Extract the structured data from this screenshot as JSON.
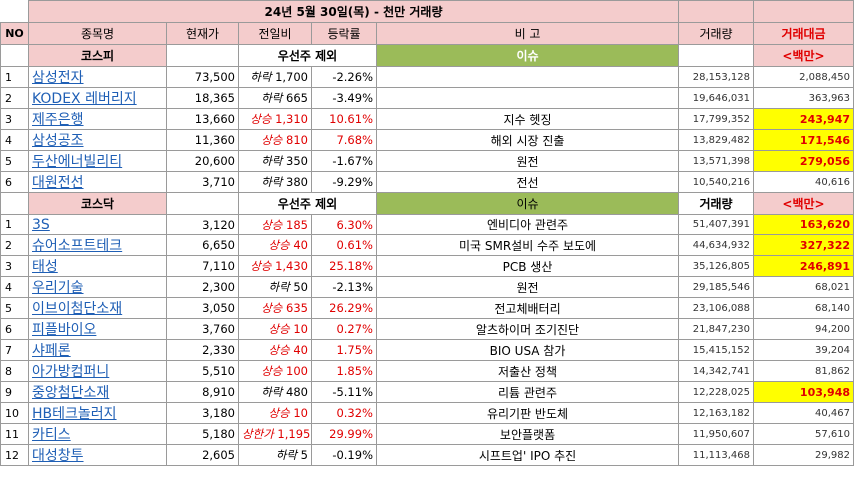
{
  "title": "24년 5월 30일(목) - 천만 거래량",
  "headers": {
    "no": "NO",
    "name": "종목명",
    "price": "현재가",
    "change": "전일비",
    "rate": "등락률",
    "note": "비 고",
    "volume": "거래량",
    "amount": "거래대금"
  },
  "kospi": {
    "label": "코스피",
    "sub": "우선주 제외",
    "issue": "이슈",
    "unit": "<백만>",
    "rows": [
      {
        "no": "1",
        "name": "삼성전자",
        "price": "73,500",
        "dir": "하락",
        "chg": "1,700",
        "rate": "-2.26%",
        "note": "",
        "volume": "28,153,128",
        "amount": "2,088,450",
        "hl": false,
        "up": false
      },
      {
        "no": "2",
        "name": "KODEX 레버리지",
        "price": "18,365",
        "dir": "하락",
        "chg": "665",
        "rate": "-3.49%",
        "note": "",
        "volume": "19,646,031",
        "amount": "363,963",
        "hl": false,
        "up": false
      },
      {
        "no": "3",
        "name": "제주은행",
        "price": "13,660",
        "dir": "상승",
        "chg": "1,310",
        "rate": "10.61%",
        "note": "지수 헷징",
        "volume": "17,799,352",
        "amount": "243,947",
        "hl": true,
        "up": true
      },
      {
        "no": "4",
        "name": "삼성공조",
        "price": "11,360",
        "dir": "상승",
        "chg": "810",
        "rate": "7.68%",
        "note": "해외 시장 진출",
        "volume": "13,829,482",
        "amount": "171,546",
        "hl": true,
        "up": true
      },
      {
        "no": "5",
        "name": "두산에너빌리티",
        "price": "20,600",
        "dir": "하락",
        "chg": "350",
        "rate": "-1.67%",
        "note": "원전",
        "volume": "13,571,398",
        "amount": "279,056",
        "hl": true,
        "up": false
      },
      {
        "no": "6",
        "name": "대원전선",
        "price": "3,710",
        "dir": "하락",
        "chg": "380",
        "rate": "-9.29%",
        "note": "전선",
        "volume": "10,540,216",
        "amount": "40,616",
        "hl": false,
        "up": false
      }
    ]
  },
  "kosdaq": {
    "label": "코스닥",
    "sub": "우선주 제외",
    "issue": "이슈",
    "volume_label": "거래량",
    "unit": "<백만>",
    "rows": [
      {
        "no": "1",
        "name": "3S",
        "price": "3,120",
        "dir": "상승",
        "chg": "185",
        "rate": "6.30%",
        "note": "엔비디아 관련주",
        "volume": "51,407,391",
        "amount": "163,620",
        "hl": true,
        "up": true
      },
      {
        "no": "2",
        "name": "슈어소프트테크",
        "price": "6,650",
        "dir": "상승",
        "chg": "40",
        "rate": "0.61%",
        "note": "미국 SMR설비 수주 보도에",
        "volume": "44,634,932",
        "amount": "327,322",
        "hl": true,
        "up": true
      },
      {
        "no": "3",
        "name": "태성",
        "price": "7,110",
        "dir": "상승",
        "chg": "1,430",
        "rate": "25.18%",
        "note": "PCB 생산",
        "volume": "35,126,805",
        "amount": "246,891",
        "hl": true,
        "up": true
      },
      {
        "no": "4",
        "name": "우리기술",
        "price": "2,300",
        "dir": "하락",
        "chg": "50",
        "rate": "-2.13%",
        "note": "원전",
        "volume": "29,185,546",
        "amount": "68,021",
        "hl": false,
        "up": false
      },
      {
        "no": "5",
        "name": "이브이첨단소재",
        "price": "3,050",
        "dir": "상승",
        "chg": "635",
        "rate": "26.29%",
        "note": "전고체배터리",
        "volume": "23,106,088",
        "amount": "68,140",
        "hl": false,
        "up": true
      },
      {
        "no": "6",
        "name": "피플바이오",
        "price": "3,760",
        "dir": "상승",
        "chg": "10",
        "rate": "0.27%",
        "note": "알츠하이머 조기진단",
        "volume": "21,847,230",
        "amount": "94,200",
        "hl": false,
        "up": true
      },
      {
        "no": "7",
        "name": "샤페론",
        "price": "2,330",
        "dir": "상승",
        "chg": "40",
        "rate": "1.75%",
        "note": "BIO USA 참가",
        "volume": "15,415,152",
        "amount": "39,204",
        "hl": false,
        "up": true
      },
      {
        "no": "8",
        "name": "아가방컴퍼니",
        "price": "5,510",
        "dir": "상승",
        "chg": "100",
        "rate": "1.85%",
        "note": "저출산 정책",
        "volume": "14,342,741",
        "amount": "81,862",
        "hl": false,
        "up": true
      },
      {
        "no": "9",
        "name": "중앙첨단소재",
        "price": "8,910",
        "dir": "하락",
        "chg": "480",
        "rate": "-5.11%",
        "note": "리튬 관련주",
        "volume": "12,228,025",
        "amount": "103,948",
        "hl": true,
        "up": false
      },
      {
        "no": "10",
        "name": "HB테크놀러지",
        "price": "3,180",
        "dir": "상승",
        "chg": "10",
        "rate": "0.32%",
        "note": "유리기판 반도체",
        "volume": "12,163,182",
        "amount": "40,467",
        "hl": false,
        "up": true
      },
      {
        "no": "11",
        "name": "카티스",
        "price": "5,180",
        "dir": "상한가",
        "chg": "1,195",
        "rate": "29.99%",
        "note": "보안플랫폼",
        "volume": "11,950,607",
        "amount": "57,610",
        "hl": false,
        "up": true
      },
      {
        "no": "12",
        "name": "대성창투",
        "price": "2,605",
        "dir": "하락",
        "chg": "5",
        "rate": "-0.19%",
        "note": "시프트업' IPO 추진",
        "volume": "11,113,468",
        "amount": "29,982",
        "hl": false,
        "up": false
      }
    ]
  }
}
